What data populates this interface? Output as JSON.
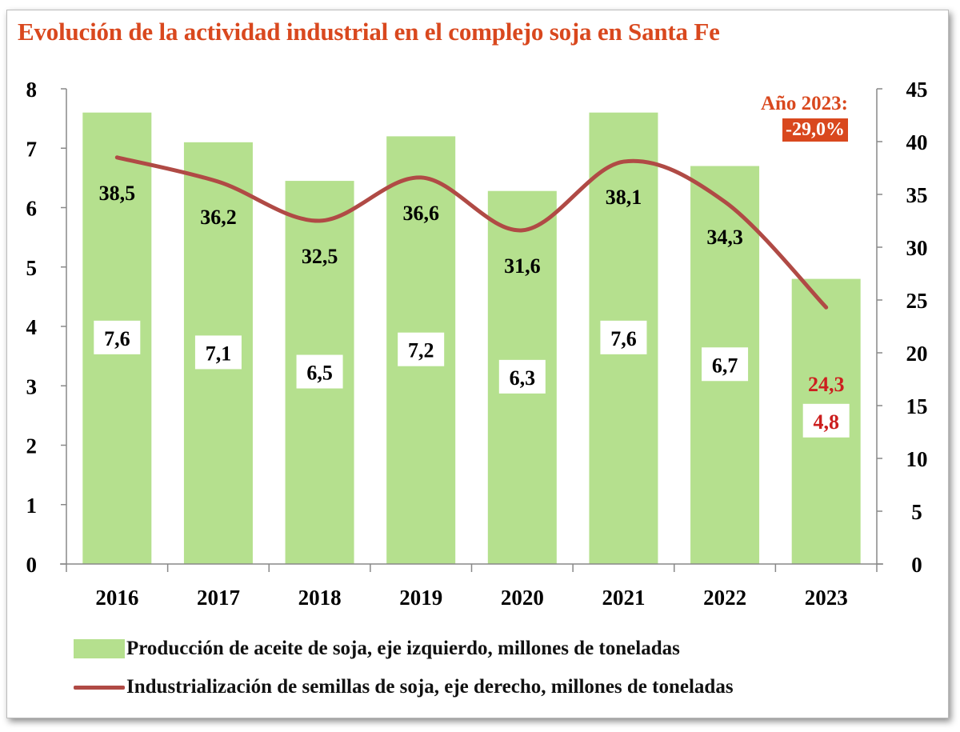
{
  "chart_data": {
    "type": "bar+line",
    "title": "Evolución de la actividad industrial en el complejo soja en Santa Fe",
    "categories": [
      "2016",
      "2017",
      "2018",
      "2019",
      "2020",
      "2021",
      "2022",
      "2023"
    ],
    "series": [
      {
        "name": "Producción de aceite de soja, eje izquierdo, millones de toneladas",
        "type": "bar",
        "axis": "left",
        "values": [
          7.6,
          7.1,
          6.45,
          7.2,
          6.28,
          7.6,
          6.7,
          4.8
        ],
        "labels": [
          "7,6",
          "7,1",
          "6,5",
          "7,2",
          "6,3",
          "7,6",
          "6,7",
          "4,8"
        ],
        "color": "#b5e08e"
      },
      {
        "name": "Industrialización de semillas de soja, eje derecho, millones de toneladas",
        "type": "line",
        "axis": "right",
        "values": [
          38.5,
          36.2,
          32.5,
          36.6,
          31.6,
          38.1,
          34.3,
          24.3
        ],
        "labels": [
          "38,5",
          "36,2",
          "32,5",
          "36,6",
          "31,6",
          "38,1",
          "34,3",
          "24,3"
        ],
        "color": "#b04a45"
      }
    ],
    "y_left": {
      "range": [
        0,
        8
      ],
      "ticks": [
        "0",
        "1",
        "2",
        "3",
        "4",
        "5",
        "6",
        "7",
        "8"
      ]
    },
    "y_right": {
      "range": [
        0,
        45
      ],
      "ticks": [
        "0",
        "5",
        "10",
        "15",
        "20",
        "25",
        "30",
        "35",
        "40",
        "45"
      ]
    },
    "highlight_color": "#d9481e",
    "annotation": {
      "label": "Año 2023:",
      "value": "-29,0%"
    },
    "legend_placement": "bottom",
    "grid": false
  }
}
